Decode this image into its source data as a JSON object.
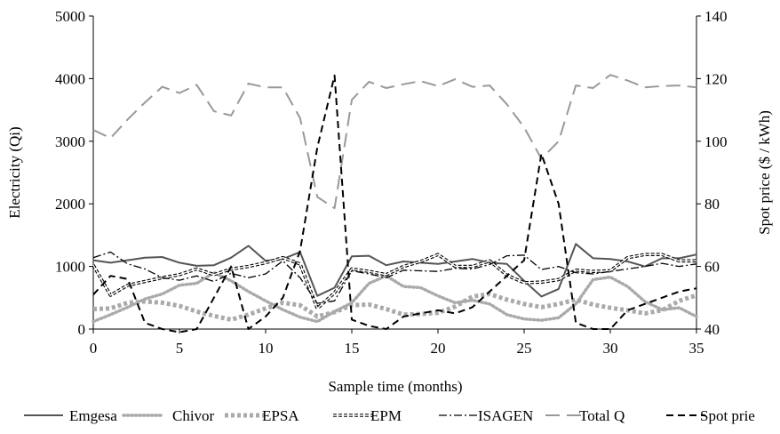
{
  "chart_data": {
    "type": "line",
    "title": "",
    "xlabel": "Sample time (months)",
    "ylabel": "Electricity (Qi)",
    "y2label": "Spot price ($ / kWh)",
    "xlim": [
      0,
      35
    ],
    "ylim": [
      0,
      5000
    ],
    "y2lim": [
      40,
      140
    ],
    "xticks": [
      0,
      5,
      10,
      15,
      20,
      25,
      30,
      35
    ],
    "yticks": [
      0,
      1000,
      2000,
      3000,
      4000,
      5000
    ],
    "y2ticks": [
      40,
      60,
      80,
      100,
      120,
      140
    ],
    "grid": false,
    "legend_position": "bottom",
    "x": [
      0,
      1,
      2,
      3,
      4,
      5,
      6,
      7,
      8,
      9,
      10,
      11,
      12,
      13,
      14,
      15,
      16,
      17,
      18,
      19,
      20,
      21,
      22,
      23,
      24,
      25,
      26,
      27,
      28,
      29,
      30,
      31,
      32,
      33,
      34,
      35
    ],
    "series": [
      {
        "name": "Emgesa",
        "axis": "left",
        "color": "#555555",
        "style": "solid",
        "values": [
          1100,
          1060,
          1100,
          1140,
          1150,
          1060,
          1010,
          1020,
          1140,
          1330,
          1090,
          1120,
          1230,
          530,
          660,
          1160,
          1170,
          1020,
          1080,
          1060,
          1040,
          1080,
          1120,
          1060,
          1040,
          770,
          520,
          640,
          1360,
          1130,
          1120,
          1080,
          1000,
          1130,
          1130,
          1190
        ]
      },
      {
        "name": "Chivor",
        "axis": "left",
        "color": "#aaaaaa",
        "style": "dotted",
        "values": [
          120,
          230,
          350,
          480,
          560,
          700,
          730,
          900,
          770,
          600,
          450,
          310,
          190,
          120,
          280,
          420,
          730,
          850,
          680,
          660,
          530,
          420,
          460,
          400,
          230,
          160,
          140,
          180,
          400,
          790,
          830,
          680,
          440,
          310,
          340,
          200
        ]
      },
      {
        "name": "EPSA",
        "axis": "left",
        "color": "#aaaaaa",
        "style": "square",
        "values": [
          320,
          330,
          420,
          440,
          420,
          370,
          280,
          210,
          150,
          230,
          330,
          420,
          380,
          200,
          270,
          380,
          390,
          320,
          230,
          240,
          260,
          360,
          520,
          560,
          470,
          400,
          350,
          400,
          470,
          390,
          340,
          300,
          250,
          300,
          450,
          540
        ]
      },
      {
        "name": "EPM",
        "axis": "left",
        "color": "#000000",
        "style": "double",
        "values": [
          1020,
          540,
          700,
          760,
          820,
          870,
          960,
          870,
          960,
          1000,
          1060,
          1140,
          1040,
          330,
          580,
          960,
          920,
          870,
          1000,
          1080,
          1190,
          1000,
          1000,
          1090,
          860,
          740,
          750,
          790,
          940,
          920,
          930,
          1140,
          1190,
          1190,
          1090,
          1090
        ]
      },
      {
        "name": "ISAGEN",
        "axis": "left",
        "color": "#000000",
        "style": "dashdot",
        "values": [
          1140,
          1230,
          1040,
          960,
          820,
          780,
          850,
          760,
          890,
          820,
          880,
          1090,
          820,
          410,
          450,
          930,
          880,
          820,
          940,
          930,
          920,
          970,
          960,
          1030,
          1170,
          1180,
          950,
          1000,
          900,
          880,
          920,
          960,
          1000,
          1050,
          1000,
          1040
        ]
      },
      {
        "name": "Total Q",
        "axis": "left",
        "color": "#999999",
        "style": "longdash",
        "values": [
          3180,
          3050,
          3350,
          3620,
          3870,
          3770,
          3900,
          3480,
          3410,
          3920,
          3860,
          3860,
          3370,
          2110,
          1930,
          3660,
          3950,
          3850,
          3910,
          3960,
          3880,
          3990,
          3870,
          3890,
          3590,
          3220,
          2720,
          3000,
          3890,
          3850,
          4060,
          3970,
          3860,
          3880,
          3890,
          3860
        ]
      },
      {
        "name": "Spot prie",
        "axis": "right",
        "color": "#000000",
        "style": "dash",
        "values": [
          51,
          57,
          56,
          42,
          40,
          39,
          40,
          50,
          60,
          40,
          44,
          50,
          65,
          98,
          121,
          43,
          41,
          40,
          44,
          45,
          46,
          45,
          47,
          52,
          57,
          62,
          96,
          80,
          42,
          40,
          40,
          46,
          48,
          50,
          52,
          53
        ]
      }
    ]
  }
}
